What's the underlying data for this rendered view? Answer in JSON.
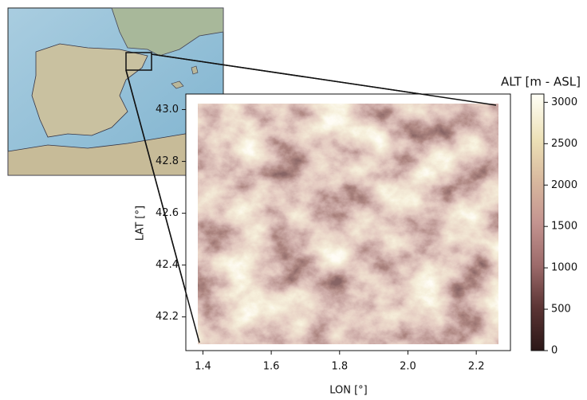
{
  "chart_data": {
    "type": "elevation-map",
    "xlabel": "LON [°]",
    "ylabel": "LAT [°]",
    "xlim": [
      1.35,
      2.3
    ],
    "ylim": [
      42.07,
      43.06
    ],
    "xticks": [
      1.4,
      1.6,
      1.8,
      {
        "value": 2,
        "label": "2.0"
      },
      2.2
    ],
    "yticks": [
      42.2,
      42.4,
      42.6,
      42.8,
      {
        "value": 43,
        "label": "43.0"
      }
    ],
    "colorbar": {
      "label": "ALT [m - ASL]",
      "lim": [
        0,
        3100
      ],
      "ticks": [
        0,
        500,
        1000,
        1500,
        2000,
        2500,
        3000
      ]
    }
  }
}
